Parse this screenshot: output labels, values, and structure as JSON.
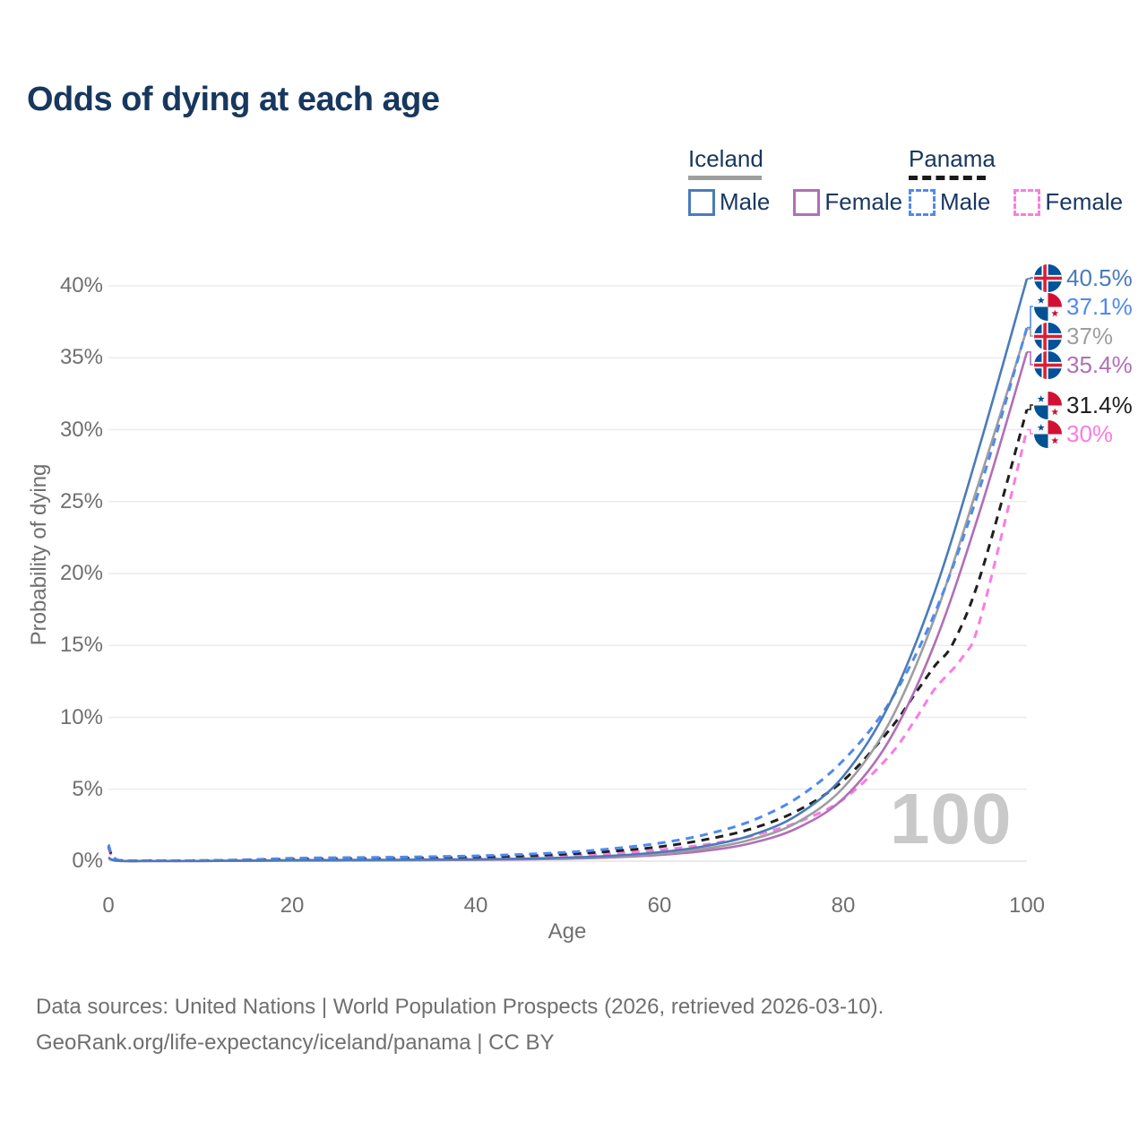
{
  "title": "Odds of dying at each age",
  "legend": {
    "groups": [
      {
        "name": "Iceland",
        "line_style": "solid",
        "underline_color": "#9e9e9e",
        "items": [
          {
            "label": "Male",
            "color": "#4b7bb9"
          },
          {
            "label": "Female",
            "color": "#b16fb7"
          }
        ]
      },
      {
        "name": "Panama",
        "line_style": "dashed",
        "underline_color": "#1a1a1a",
        "items": [
          {
            "label": "Male",
            "color": "#5089f0"
          },
          {
            "label": "Female",
            "color": "#fa7ce2"
          }
        ]
      }
    ]
  },
  "chart_data": {
    "type": "line",
    "title": "Odds of dying at each age",
    "xlabel": "Age",
    "ylabel": "Probability of dying",
    "xlim": [
      0,
      100
    ],
    "ylim": [
      0,
      42
    ],
    "x_ticks": [
      0,
      20,
      40,
      60,
      80,
      100
    ],
    "y_tick_values": [
      0,
      5,
      10,
      15,
      20,
      25,
      30,
      35,
      40
    ],
    "y_tick_labels": [
      "0%",
      "5%",
      "10%",
      "15%",
      "20%",
      "25%",
      "30%",
      "35%",
      "40%"
    ],
    "grid": "horizontal",
    "legend_position": "top-right",
    "watermark": "100",
    "series": [
      {
        "name": "Panama Female",
        "country": "panama",
        "sex": "female",
        "color": "#fa7ce2",
        "dash": "dashed",
        "flag_icon": "panama-flag-icon",
        "end_label": "30%",
        "end_value": 30,
        "x": [
          0,
          1,
          5,
          10,
          15,
          20,
          25,
          30,
          35,
          40,
          45,
          50,
          55,
          60,
          65,
          70,
          75,
          80,
          85,
          88,
          90,
          93,
          95,
          100
        ],
        "y": [
          0.95,
          0.07,
          0.03,
          0.03,
          0.05,
          0.08,
          0.1,
          0.12,
          0.15,
          0.19,
          0.26,
          0.36,
          0.52,
          0.78,
          1.15,
          1.75,
          2.7,
          4.3,
          7.3,
          10.0,
          12.0,
          14.2,
          17.0,
          30.0
        ]
      },
      {
        "name": "Panama Both sexes",
        "country": "panama",
        "sex": "both",
        "color": "#1f1f1f",
        "dash": "dashed",
        "flag_icon": "panama-flag-icon",
        "end_label": "31.4%",
        "end_value": 31.4,
        "x": [
          0,
          1,
          5,
          10,
          15,
          20,
          25,
          30,
          35,
          40,
          45,
          50,
          55,
          60,
          65,
          70,
          75,
          80,
          85,
          88,
          90,
          92,
          95,
          100
        ],
        "y": [
          1.05,
          0.08,
          0.035,
          0.035,
          0.07,
          0.14,
          0.17,
          0.19,
          0.23,
          0.28,
          0.36,
          0.49,
          0.7,
          1.0,
          1.5,
          2.25,
          3.5,
          5.6,
          9.1,
          11.8,
          13.6,
          15.2,
          20.0,
          31.4
        ]
      },
      {
        "name": "Iceland Female",
        "country": "iceland",
        "sex": "female",
        "color": "#b16fb7",
        "dash": "solid",
        "flag_icon": "iceland-flag-icon",
        "end_label": "35.4%",
        "end_value": 35.4,
        "x": [
          0,
          1,
          5,
          10,
          15,
          20,
          25,
          30,
          35,
          40,
          45,
          50,
          55,
          60,
          65,
          70,
          75,
          80,
          85,
          90,
          95,
          100
        ],
        "y": [
          0.21,
          0.02,
          0.01,
          0.01,
          0.02,
          0.03,
          0.04,
          0.05,
          0.07,
          0.09,
          0.12,
          0.17,
          0.26,
          0.43,
          0.72,
          1.25,
          2.3,
          4.35,
          8.4,
          15.2,
          24.6,
          35.4
        ]
      },
      {
        "name": "Iceland Both sexes",
        "country": "iceland",
        "sex": "both",
        "color": "#9e9e9e",
        "dash": "solid",
        "flag_icon": "iceland-flag-icon",
        "end_label": "37%",
        "end_value": 37,
        "x": [
          0,
          1,
          5,
          10,
          15,
          20,
          25,
          30,
          35,
          40,
          45,
          50,
          55,
          60,
          65,
          70,
          75,
          80,
          85,
          90,
          95,
          100
        ],
        "y": [
          0.23,
          0.025,
          0.01,
          0.01,
          0.03,
          0.05,
          0.06,
          0.07,
          0.09,
          0.11,
          0.15,
          0.21,
          0.32,
          0.52,
          0.88,
          1.5,
          2.7,
          5.1,
          9.6,
          17.0,
          26.8,
          37.0
        ]
      },
      {
        "name": "Panama Male",
        "country": "panama",
        "sex": "male",
        "color": "#5089f0",
        "dash": "dashed",
        "flag_icon": "panama-flag-icon",
        "end_label": "37.1%",
        "end_value": 37.1,
        "x": [
          0,
          1,
          5,
          10,
          15,
          20,
          25,
          30,
          35,
          40,
          45,
          50,
          55,
          60,
          65,
          70,
          75,
          80,
          85,
          90,
          95,
          100
        ],
        "y": [
          1.15,
          0.09,
          0.04,
          0.04,
          0.1,
          0.2,
          0.24,
          0.27,
          0.31,
          0.37,
          0.47,
          0.62,
          0.88,
          1.25,
          1.85,
          2.8,
          4.4,
          7.0,
          11.0,
          17.3,
          26.2,
          37.1
        ]
      },
      {
        "name": "Iceland Male",
        "country": "iceland",
        "sex": "male",
        "color": "#4b7bb9",
        "dash": "solid",
        "flag_icon": "iceland-flag-icon",
        "end_label": "40.5%",
        "end_value": 40.5,
        "x": [
          0,
          1,
          5,
          10,
          15,
          20,
          25,
          30,
          35,
          40,
          45,
          50,
          55,
          60,
          65,
          70,
          75,
          80,
          85,
          90,
          95,
          100
        ],
        "y": [
          0.25,
          0.03,
          0.01,
          0.01,
          0.04,
          0.07,
          0.08,
          0.09,
          0.11,
          0.13,
          0.17,
          0.25,
          0.38,
          0.62,
          1.05,
          1.8,
          3.2,
          5.9,
          10.9,
          18.8,
          29.2,
          40.5
        ]
      }
    ]
  },
  "flag_colors": {
    "iceland": {
      "blue": "#02529C",
      "white": "#ffffff",
      "red": "#DC1E35"
    },
    "panama": {
      "blue": "#005293",
      "white": "#f8f8f8",
      "red": "#D21034"
    }
  },
  "footer": {
    "line1": "Data sources: United Nations | World Population Prospects (2026, retrieved 2026-03-10).",
    "line2": "GeoRank.org/life-expectancy/iceland/panama | CC BY"
  }
}
